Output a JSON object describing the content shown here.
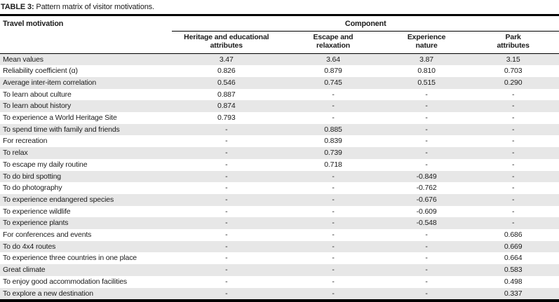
{
  "caption": {
    "label": "TABLE 3:",
    "text": "Pattern matrix of visitor motivations."
  },
  "table": {
    "row_header": "Travel motivation",
    "group_header": "Component",
    "columns": [
      "Heritage and educational\nattributes",
      "Escape and\nrelaxation",
      "Experience\nnature",
      "Park\nattributes"
    ],
    "rows": [
      {
        "label": "Mean values",
        "values": [
          "3.47",
          "3.64",
          "3.87",
          "3.15"
        ]
      },
      {
        "label": "Reliability coefficient (α)",
        "values": [
          "0.826",
          "0.879",
          "0.810",
          "0.703"
        ]
      },
      {
        "label": "Average inter-item correlation",
        "values": [
          "0.546",
          "0.745",
          "0.515",
          "0.290"
        ]
      },
      {
        "label": "To learn about culture",
        "values": [
          "0.887",
          "-",
          "-",
          "-"
        ]
      },
      {
        "label": "To learn about history",
        "values": [
          "0.874",
          "-",
          "-",
          "-"
        ]
      },
      {
        "label": "To experience a World Heritage Site",
        "values": [
          "0.793",
          "-",
          "-",
          "-"
        ]
      },
      {
        "label": "To spend time with family and friends",
        "values": [
          "-",
          "0.885",
          "-",
          "-"
        ]
      },
      {
        "label": "For recreation",
        "values": [
          "-",
          "0.839",
          "-",
          "-"
        ]
      },
      {
        "label": "To relax",
        "values": [
          "-",
          "0.739",
          "-",
          "-"
        ]
      },
      {
        "label": "To escape my daily routine",
        "values": [
          "-",
          "0.718",
          "-",
          "-"
        ]
      },
      {
        "label": "To do bird spotting",
        "values": [
          "-",
          "-",
          "-0.849",
          "-"
        ]
      },
      {
        "label": "To do photography",
        "values": [
          "-",
          "-",
          "-0.762",
          "-"
        ]
      },
      {
        "label": "To experience endangered species",
        "values": [
          "-",
          "-",
          "-0.676",
          "-"
        ]
      },
      {
        "label": "To experience wildlife",
        "values": [
          "-",
          "-",
          "-0.609",
          "-"
        ]
      },
      {
        "label": "To experience plants",
        "values": [
          "-",
          "-",
          "-0.548",
          "-"
        ]
      },
      {
        "label": "For conferences and events",
        "values": [
          "-",
          "-",
          "-",
          "0.686"
        ]
      },
      {
        "label": "To do 4x4 routes",
        "values": [
          "-",
          "-",
          "-",
          "0.669"
        ]
      },
      {
        "label": "To experience three countries in one place",
        "values": [
          "-",
          "-",
          "-",
          "0.664"
        ]
      },
      {
        "label": "Great climate",
        "values": [
          "-",
          "-",
          "-",
          "0.583"
        ]
      },
      {
        "label": "To enjoy good accommodation facilities",
        "values": [
          "-",
          "-",
          "-",
          "0.498"
        ]
      },
      {
        "label": "To explore a new destination",
        "values": [
          "-",
          "-",
          "-",
          "0.337"
        ]
      }
    ]
  },
  "colors": {
    "stripe": "#e7e7e7",
    "text": "#1b1b1b",
    "rule": "#000000"
  }
}
